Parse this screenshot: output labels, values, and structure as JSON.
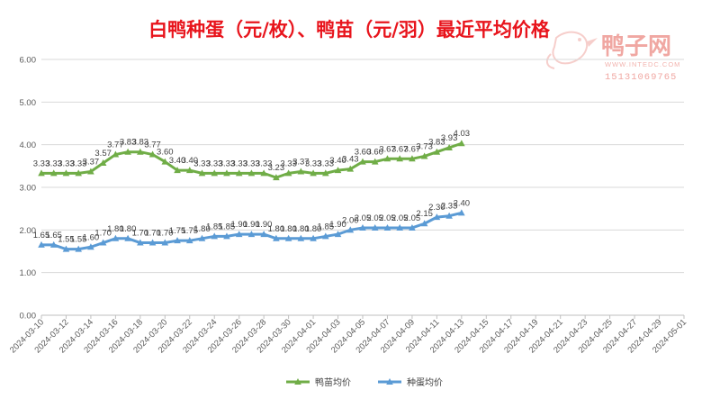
{
  "chart_data": {
    "type": "line",
    "title": "白鸭种蛋（元/枚）、鸭苗（元/羽）最近平均价格",
    "ylim": [
      0,
      6
    ],
    "yticks": [
      "0.00",
      "1.00",
      "2.00",
      "3.00",
      "4.00",
      "5.00",
      "6.00"
    ],
    "grid": true,
    "legend_position": "bottom",
    "x_axis_ticks": [
      "2024-03-10",
      "2024-03-12",
      "2024-03-14",
      "2024-03-16",
      "2024-03-18",
      "2024-03-20",
      "2024-03-22",
      "2024-03-24",
      "2024-03-26",
      "2024-03-28",
      "2024-03-30",
      "2024-04-01",
      "2024-04-03",
      "2024-04-05",
      "2024-04-07",
      "2024-04-09",
      "2024-04-11",
      "2024-04-13",
      "2024-04-15",
      "2024-04-17",
      "2024-04-19",
      "2024-04-21",
      "2024-04-23",
      "2024-04-25",
      "2024-04-27",
      "2024-04-29",
      "2024-05-01"
    ],
    "x": [
      "2024-03-10",
      "2024-03-11",
      "2024-03-12",
      "2024-03-13",
      "2024-03-14",
      "2024-03-15",
      "2024-03-16",
      "2024-03-17",
      "2024-03-18",
      "2024-03-19",
      "2024-03-20",
      "2024-03-21",
      "2024-03-22",
      "2024-03-23",
      "2024-03-24",
      "2024-03-25",
      "2024-03-26",
      "2024-03-27",
      "2024-03-28",
      "2024-03-29",
      "2024-03-30",
      "2024-03-31",
      "2024-04-01",
      "2024-04-02",
      "2024-04-03",
      "2024-04-04",
      "2024-04-05",
      "2024-04-06",
      "2024-04-07",
      "2024-04-08",
      "2024-04-09",
      "2024-04-10",
      "2024-04-11",
      "2024-04-12",
      "2024-04-13"
    ],
    "series": [
      {
        "name": "鸭苗均价",
        "color": "#70ad47",
        "marker": "triangle",
        "values": [
          3.33,
          3.33,
          3.33,
          3.33,
          3.37,
          3.57,
          3.77,
          3.83,
          3.83,
          3.77,
          3.6,
          3.4,
          3.4,
          3.33,
          3.33,
          3.33,
          3.33,
          3.33,
          3.33,
          3.23,
          3.33,
          3.37,
          3.33,
          3.33,
          3.4,
          3.43,
          3.6,
          3.6,
          3.67,
          3.67,
          3.67,
          3.73,
          3.83,
          3.93,
          4.03
        ],
        "labels": [
          "3.33",
          "3.33",
          "3.33",
          "3.33",
          "3.37",
          "3.57",
          "3.77",
          "3.83",
          "3.83",
          "3.77",
          "3.60",
          "3.40",
          "3.40",
          "3.33",
          "3.33",
          "3.33",
          "3.33",
          "3.33",
          "3.33",
          "3.23",
          "3.33",
          "3.37",
          "3.33",
          "3.33",
          "3.40",
          "3.43",
          "3.60",
          "3.60",
          "3.67",
          "3.67",
          "3.67",
          "3.73",
          "3.83",
          "3.93",
          "4.03"
        ]
      },
      {
        "name": "种蛋均价",
        "color": "#5b9bd5",
        "marker": "triangle",
        "values": [
          1.65,
          1.65,
          1.55,
          1.55,
          1.6,
          1.7,
          1.8,
          1.8,
          1.7,
          1.7,
          1.7,
          1.75,
          1.75,
          1.8,
          1.85,
          1.85,
          1.9,
          1.9,
          1.9,
          1.8,
          1.8,
          1.8,
          1.8,
          1.85,
          1.9,
          2.0,
          2.05,
          2.05,
          2.05,
          2.05,
          2.05,
          2.15,
          2.3,
          2.33,
          2.4
        ],
        "labels": [
          "1.65",
          "1.65",
          "1.55",
          "1.55",
          "1.60",
          "1.70",
          "1.80",
          "1.80",
          "1.70",
          "1.70",
          "1.70",
          "1.75",
          "1.75",
          "1.80",
          "1.85",
          "1.85",
          "1.90",
          "1.90",
          "1.90",
          "1.80",
          "1.80",
          "1.80",
          "1.80",
          "1.85",
          "1.90",
          "2.00",
          "2.05",
          "2.05",
          "2.05",
          "2.05",
          "2.05",
          "2.15",
          "2.30",
          "2.33",
          "2.40"
        ]
      }
    ]
  },
  "watermark": {
    "brand": "鸭子网",
    "url": "WWW.INTEDC.COM",
    "phone": "15131069765"
  }
}
